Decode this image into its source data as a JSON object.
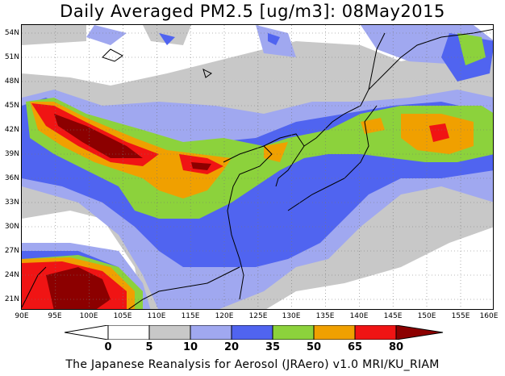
{
  "title": "Daily Averaged PM2.5 [ug/m3]: 08May2015",
  "credit": "The Japanese Reanalysis for Aerosol (JRAero) v1.0 MRI/KU_RIAM",
  "axes": {
    "lat_labels": [
      "54N",
      "51N",
      "48N",
      "45N",
      "42N",
      "39N",
      "36N",
      "33N",
      "30N",
      "27N",
      "24N",
      "21N"
    ],
    "lon_labels": [
      "90E",
      "95E",
      "100E",
      "105E",
      "110E",
      "115E",
      "120E",
      "125E",
      "130E",
      "135E",
      "140E",
      "145E",
      "150E",
      "155E",
      "160E"
    ]
  },
  "legend": {
    "labels": [
      "0",
      "5",
      "10",
      "20",
      "35",
      "50",
      "65",
      "80"
    ],
    "colors": [
      "#ffffff",
      "#c8c8c8",
      "#a0a8f0",
      "#5064f0",
      "#8cd23c",
      "#f0a000",
      "#f01414",
      "#8c0000"
    ]
  }
}
